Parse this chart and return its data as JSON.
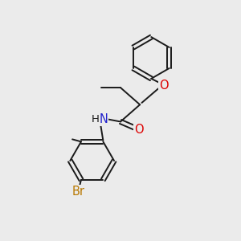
{
  "background_color": "#ebebeb",
  "bond_color": "#1a1a1a",
  "line_width": 1.4,
  "atom_colors": {
    "O": "#dd0000",
    "N": "#2222cc",
    "Br": "#b87800",
    "C": "#1a1a1a",
    "H": "#1a1a1a"
  },
  "font_size": 9.5
}
